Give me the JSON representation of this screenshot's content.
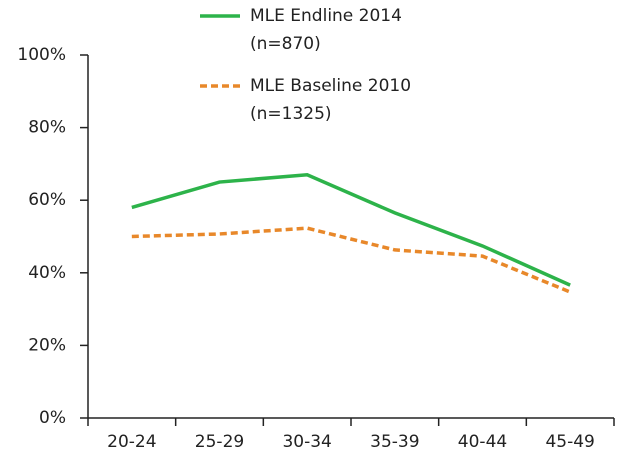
{
  "chart_data": {
    "type": "line",
    "categories": [
      "20-24",
      "25-29",
      "30-34",
      "35-39",
      "40-44",
      "45-49"
    ],
    "series": [
      {
        "name": "MLE Endline 2014",
        "sample": "(n=870)",
        "color": "#2db34a",
        "dashed": false,
        "values": [
          58,
          65,
          67,
          56.5,
          47.4,
          36.6
        ]
      },
      {
        "name": "MLE Baseline 2010",
        "sample": "(n=1325)",
        "color": "#e8882a",
        "dashed": true,
        "values": [
          50,
          50.7,
          52.3,
          46.3,
          44.6,
          34.7
        ]
      }
    ],
    "ylim": [
      0,
      100
    ],
    "yticks": [
      {
        "value": 0,
        "label": "0%"
      },
      {
        "value": 20,
        "label": "20%"
      },
      {
        "value": 40,
        "label": "40%"
      },
      {
        "value": 60,
        "label": "60%"
      },
      {
        "value": 80,
        "label": "80%"
      },
      {
        "value": 100,
        "label": "100%"
      }
    ],
    "grid": false
  }
}
